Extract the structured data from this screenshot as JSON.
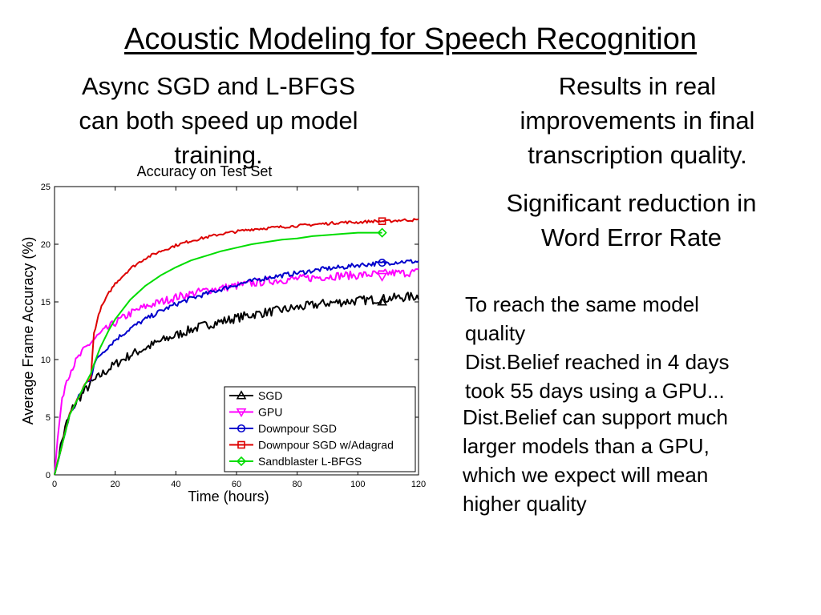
{
  "slide": {
    "title": "Acoustic Modeling for Speech Recognition",
    "left_text": [
      "Async SGD and L-BFGS",
      "can both speed up model",
      "training."
    ],
    "right_text": [
      "Results in real",
      "improvements in final",
      "transcription quality."
    ],
    "significant_text": [
      "Significant reduction in",
      "Word Error Rate"
    ],
    "notes_a": [
      "To reach the same model",
      "quality",
      "Dist.Belief reached in 4 days",
      "took 55 days using a GPU..."
    ],
    "notes_b": [
      "Dist.Belief can support much",
      "larger models than a GPU,",
      "which we expect will mean",
      "higher quality"
    ]
  },
  "chart_data": {
    "type": "line",
    "title": "Accuracy on Test Set",
    "xlabel": "Time (hours)",
    "ylabel": "Average Frame Accuracy (%)",
    "xlim": [
      0,
      120
    ],
    "ylim": [
      0,
      25
    ],
    "xticks": [
      0,
      20,
      40,
      60,
      80,
      100,
      120
    ],
    "yticks": [
      0,
      5,
      10,
      15,
      20,
      25
    ],
    "grid": false,
    "legend_position": "bottom-right",
    "series": [
      {
        "name": "SGD",
        "color": "#000000",
        "marker": "triangle-up",
        "marker_at": [
          108,
          15.0
        ],
        "x": [
          0,
          2,
          4,
          6,
          8,
          10,
          12,
          15,
          18,
          20,
          25,
          30,
          35,
          40,
          45,
          50,
          55,
          60,
          65,
          70,
          75,
          80,
          85,
          90,
          95,
          100,
          105,
          110,
          115,
          120
        ],
        "y": [
          0,
          2.5,
          4.5,
          5.8,
          6.6,
          7.3,
          7.9,
          8.6,
          9.2,
          9.6,
          10.4,
          11.0,
          11.6,
          12.1,
          12.6,
          13.0,
          13.3,
          13.6,
          13.9,
          14.1,
          14.3,
          14.5,
          14.7,
          14.9,
          15.0,
          15.1,
          15.2,
          15.3,
          15.4,
          15.5
        ],
        "noise": 0.4
      },
      {
        "name": "GPU",
        "color": "#ff00ff",
        "marker": "triangle-down",
        "marker_at": [
          108,
          17.2
        ],
        "x": [
          0,
          1,
          2,
          3,
          4,
          6,
          8,
          10,
          12,
          15,
          18,
          20,
          25,
          30,
          35,
          40,
          45,
          50,
          55,
          60,
          65,
          70,
          75,
          80,
          85,
          90,
          95,
          100,
          105,
          110,
          115,
          120
        ],
        "y": [
          0,
          3.0,
          5.5,
          7.2,
          8.3,
          9.4,
          10.2,
          10.9,
          11.5,
          12.2,
          12.8,
          13.2,
          14.0,
          14.6,
          15.0,
          15.4,
          15.7,
          16.0,
          16.2,
          16.4,
          16.6,
          16.8,
          16.9,
          17.0,
          17.1,
          17.2,
          17.3,
          17.3,
          17.4,
          17.5,
          17.5,
          17.6
        ],
        "noise": 0.35
      },
      {
        "name": "Downpour SGD",
        "color": "#0000cc",
        "marker": "circle",
        "marker_at": [
          108,
          18.4
        ],
        "x": [
          0,
          5,
          10,
          12,
          13,
          15,
          18,
          20,
          25,
          30,
          35,
          40,
          45,
          50,
          55,
          60,
          65,
          70,
          75,
          80,
          85,
          90,
          95,
          100,
          105,
          110,
          115,
          120
        ],
        "y": [
          0,
          5.2,
          7.8,
          8.4,
          9.6,
          10.4,
          11.2,
          11.7,
          12.7,
          13.5,
          14.2,
          14.8,
          15.3,
          15.7,
          16.1,
          16.5,
          16.8,
          17.1,
          17.3,
          17.5,
          17.7,
          17.9,
          18.0,
          18.2,
          18.3,
          18.4,
          18.5,
          18.5
        ],
        "noise": 0.2
      },
      {
        "name": "Downpour SGD w/Adagrad",
        "color": "#dd0000",
        "marker": "square",
        "marker_at": [
          108,
          22.0
        ],
        "x": [
          0,
          5,
          10,
          12,
          13,
          15,
          18,
          20,
          25,
          30,
          35,
          40,
          45,
          50,
          55,
          60,
          65,
          70,
          75,
          80,
          85,
          90,
          95,
          100,
          105,
          110,
          115,
          120
        ],
        "y": [
          0,
          5.2,
          7.8,
          8.5,
          12.3,
          14.3,
          15.8,
          16.6,
          17.9,
          18.8,
          19.4,
          19.9,
          20.3,
          20.6,
          20.9,
          21.1,
          21.3,
          21.4,
          21.5,
          21.6,
          21.7,
          21.8,
          21.9,
          21.9,
          22.0,
          22.0,
          22.1,
          22.1
        ],
        "noise": 0.12
      },
      {
        "name": "Sandblaster L-BFGS",
        "color": "#00dd00",
        "marker": "diamond",
        "marker_at": [
          108,
          21.0
        ],
        "x": [
          0,
          5,
          10,
          12,
          13,
          15,
          18,
          20,
          25,
          30,
          35,
          40,
          45,
          50,
          55,
          60,
          65,
          70,
          75,
          80,
          85,
          90,
          95,
          100,
          105,
          108
        ],
        "y": [
          0,
          5.2,
          7.8,
          8.8,
          9.6,
          11.0,
          12.6,
          13.5,
          15.2,
          16.4,
          17.3,
          18.0,
          18.6,
          19.0,
          19.4,
          19.7,
          20.0,
          20.2,
          20.4,
          20.5,
          20.7,
          20.8,
          20.9,
          21.0,
          21.0,
          21.0
        ],
        "noise": 0
      }
    ]
  }
}
